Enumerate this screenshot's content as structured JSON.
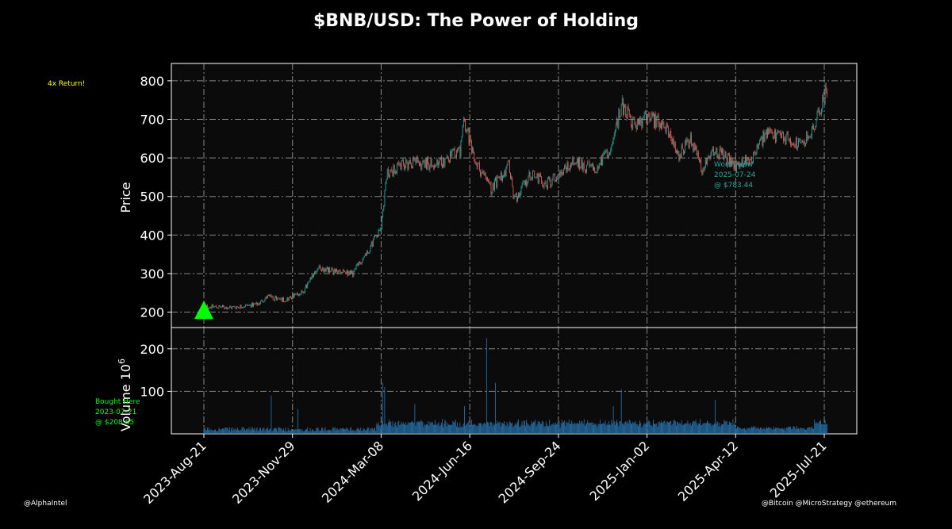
{
  "chart_data": {
    "type": "candlestick",
    "title": "$BNB/USD: The Power of Holding",
    "price_panel": {
      "ylabel": "Price",
      "ylim": [
        160,
        845
      ],
      "yticks": [
        200,
        300,
        400,
        500,
        600,
        700,
        800
      ],
      "grid": true
    },
    "volume_panel": {
      "ylabel": "Volume  10",
      "ylabel_exponent": "6",
      "unit_multiplier": 1000000,
      "ylim": [
        0,
        250
      ],
      "yticks": [
        100,
        200
      ],
      "grid": true,
      "color": "#2878b5"
    },
    "x_range": [
      "2023-07-24",
      "2025-07-24"
    ],
    "xticks": [
      "2023-Aug-21",
      "2023-Nov-29",
      "2024-Mar-08",
      "2024-Jun-16",
      "2024-Sep-24",
      "2025-Jan-02",
      "2025-Apr-12",
      "2025-Jul-21"
    ],
    "xtick_dates": [
      "2023-08-21",
      "2023-11-29",
      "2024-03-08",
      "2024-06-16",
      "2024-09-24",
      "2025-01-02",
      "2025-04-12",
      "2025-07-21"
    ],
    "colors": {
      "up": "#26a69a",
      "down": "#ef5350",
      "buy_marker": "#00ff00",
      "return_text": "#ffff00",
      "worth_text": "#26a69a"
    },
    "price_keypoints": [
      {
        "date": "2023-08-21",
        "price": 215
      },
      {
        "date": "2023-09-20",
        "price": 212
      },
      {
        "date": "2023-10-20",
        "price": 220
      },
      {
        "date": "2023-11-01",
        "price": 240
      },
      {
        "date": "2023-11-20",
        "price": 232
      },
      {
        "date": "2023-12-10",
        "price": 250
      },
      {
        "date": "2023-12-28",
        "price": 315
      },
      {
        "date": "2024-01-15",
        "price": 305
      },
      {
        "date": "2024-02-05",
        "price": 300
      },
      {
        "date": "2024-02-25",
        "price": 370
      },
      {
        "date": "2024-03-08",
        "price": 430
      },
      {
        "date": "2024-03-15",
        "price": 560
      },
      {
        "date": "2024-04-10",
        "price": 590
      },
      {
        "date": "2024-05-10",
        "price": 580
      },
      {
        "date": "2024-06-05",
        "price": 620
      },
      {
        "date": "2024-06-10",
        "price": 700
      },
      {
        "date": "2024-06-20",
        "price": 600
      },
      {
        "date": "2024-07-10",
        "price": 520
      },
      {
        "date": "2024-07-30",
        "price": 580
      },
      {
        "date": "2024-08-05",
        "price": 490
      },
      {
        "date": "2024-08-25",
        "price": 560
      },
      {
        "date": "2024-09-10",
        "price": 530
      },
      {
        "date": "2024-10-10",
        "price": 590
      },
      {
        "date": "2024-11-05",
        "price": 570
      },
      {
        "date": "2024-11-25",
        "price": 640
      },
      {
        "date": "2024-12-04",
        "price": 740
      },
      {
        "date": "2024-12-20",
        "price": 680
      },
      {
        "date": "2025-01-02",
        "price": 705
      },
      {
        "date": "2025-01-25",
        "price": 680
      },
      {
        "date": "2025-02-05",
        "price": 600
      },
      {
        "date": "2025-02-20",
        "price": 650
      },
      {
        "date": "2025-03-05",
        "price": 570
      },
      {
        "date": "2025-03-20",
        "price": 620
      },
      {
        "date": "2025-04-12",
        "price": 580
      },
      {
        "date": "2025-05-01",
        "price": 600
      },
      {
        "date": "2025-05-15",
        "price": 660
      },
      {
        "date": "2025-06-10",
        "price": 650
      },
      {
        "date": "2025-06-25",
        "price": 630
      },
      {
        "date": "2025-07-10",
        "price": 680
      },
      {
        "date": "2025-07-24",
        "price": 783.44
      }
    ],
    "volume_spikes": [
      {
        "date": "2023-11-05",
        "volume": 90
      },
      {
        "date": "2023-12-05",
        "volume": 58
      },
      {
        "date": "2024-03-10",
        "volume": 120
      },
      {
        "date": "2024-03-12",
        "volume": 110
      },
      {
        "date": "2024-04-15",
        "volume": 70
      },
      {
        "date": "2024-06-10",
        "volume": 65
      },
      {
        "date": "2024-07-05",
        "volume": 225
      },
      {
        "date": "2024-07-15",
        "volume": 120
      },
      {
        "date": "2024-12-04",
        "volume": 105
      },
      {
        "date": "2024-11-25",
        "volume": 65
      },
      {
        "date": "2025-03-20",
        "volume": 80
      }
    ],
    "annotations": {
      "return_text": "4x Return!",
      "bought": {
        "line1": "Bought Here",
        "line2": "2023-07-21",
        "line3": "@ $208.85",
        "date": "2023-08-21",
        "price": 205
      },
      "worth": {
        "line1": "Worth Now",
        "line2": "2025-07-24",
        "line3": "@ $783.44"
      }
    }
  },
  "credits": {
    "left": "@AlphaIntel",
    "right": "@Bitcoin @MicroStrategy @ethereum"
  }
}
